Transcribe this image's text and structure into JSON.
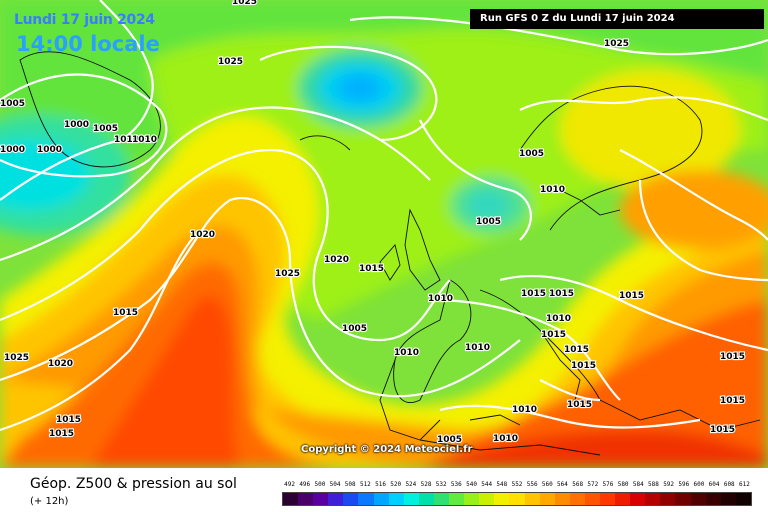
{
  "header": {
    "date_label": "Lundi 17 juin 2024",
    "time_label": "14:00 locale",
    "run_label": "Run GFS 0 Z du Lundi 17 juin 2024"
  },
  "copyright": "Copyright © 2024 Meteociel.fr",
  "footer": {
    "title": "Géop. Z500 & pression au sol",
    "subtitle": "(+ 12h)"
  },
  "legend": {
    "values": [
      "492",
      "496",
      "500",
      "504",
      "508",
      "512",
      "516",
      "520",
      "524",
      "528",
      "532",
      "536",
      "540",
      "544",
      "548",
      "552",
      "556",
      "560",
      "564",
      "568",
      "572",
      "576",
      "580",
      "584",
      "588",
      "592",
      "596",
      "600",
      "604",
      "608",
      "612"
    ],
    "colors": [
      "#2b0033",
      "#4a006a",
      "#5b00a0",
      "#3f1fd8",
      "#1a4af0",
      "#0a78ff",
      "#00a6ff",
      "#00d0ff",
      "#00f0e0",
      "#00e0a8",
      "#30e070",
      "#62ea3e",
      "#98f01a",
      "#c8f000",
      "#f0f000",
      "#ffe000",
      "#ffc400",
      "#ffa800",
      "#ff8c00",
      "#ff7000",
      "#ff5400",
      "#ff3800",
      "#f01c00",
      "#d80000",
      "#b40000",
      "#900000",
      "#700000",
      "#500000",
      "#380000",
      "#200000",
      "#100000"
    ]
  },
  "isobars": [
    {
      "value": "1025"
    },
    {
      "value": "1025"
    },
    {
      "value": "1025"
    },
    {
      "value": "1005"
    },
    {
      "value": "1000"
    },
    {
      "value": "1005"
    },
    {
      "value": "1010"
    },
    {
      "value": "1010"
    },
    {
      "value": "1000"
    },
    {
      "value": "1000"
    },
    {
      "value": "1005"
    },
    {
      "value": "1010"
    },
    {
      "value": "1005"
    },
    {
      "value": "1020"
    },
    {
      "value": "1025"
    },
    {
      "value": "1020"
    },
    {
      "value": "1015"
    },
    {
      "value": "1010"
    },
    {
      "value": "1015"
    },
    {
      "value": "1015"
    },
    {
      "value": "1015"
    },
    {
      "value": "1005"
    },
    {
      "value": "1015"
    },
    {
      "value": "1010"
    },
    {
      "value": "1010"
    },
    {
      "value": "1015"
    },
    {
      "value": "1015"
    },
    {
      "value": "1010"
    },
    {
      "value": "1015"
    },
    {
      "value": "1025"
    },
    {
      "value": "1020"
    },
    {
      "value": "1015"
    },
    {
      "value": "1015"
    },
    {
      "value": "1010"
    },
    {
      "value": "1015"
    },
    {
      "value": "1005"
    },
    {
      "value": "1010"
    },
    {
      "value": "1015"
    },
    {
      "value": "1015"
    },
    {
      "value": "1015"
    }
  ]
}
